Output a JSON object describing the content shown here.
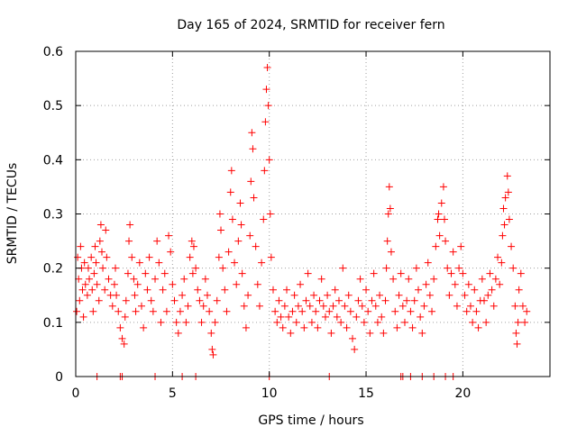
{
  "chart_data": {
    "type": "scatter",
    "title": "Day 165 of 2024, SRMTID for receiver fern",
    "xlabel": "GPS time / hours",
    "ylabel": "SRMTID / TECUs",
    "xlim": [
      0,
      24.5
    ],
    "ylim": [
      0,
      0.6
    ],
    "x_ticks": [
      0,
      5,
      10,
      15,
      20
    ],
    "y_ticks": [
      0,
      0.1,
      0.2,
      0.3,
      0.4,
      0.5,
      0.6
    ],
    "x_tick_labels": [
      "0",
      "5",
      "10",
      "15",
      "20"
    ],
    "y_tick_labels": [
      "0",
      "0.1",
      "0.2",
      "0.3",
      "0.4",
      "0.5",
      "0.6"
    ],
    "grid": true,
    "marker": "+",
    "colors": {
      "series": "#ff0000",
      "grid": "#a0a0a0",
      "axes": "#000000"
    },
    "series": [
      {
        "name": "SRMTID",
        "points": [
          [
            0.05,
            0.12
          ],
          [
            0.1,
            0.22
          ],
          [
            0.15,
            0.18
          ],
          [
            0.2,
            0.14
          ],
          [
            0.25,
            0.24
          ],
          [
            0.3,
            0.2
          ],
          [
            0.35,
            0.16
          ],
          [
            0.4,
            0.11
          ],
          [
            0.45,
            0.21
          ],
          [
            0.5,
            0.17
          ],
          [
            0.6,
            0.15
          ],
          [
            0.65,
            0.2
          ],
          [
            0.7,
            0.18
          ],
          [
            0.8,
            0.22
          ],
          [
            0.85,
            0.16
          ],
          [
            0.9,
            0.12
          ],
          [
            0.95,
            0.19
          ],
          [
            1.0,
            0.24
          ],
          [
            1.05,
            0.21
          ],
          [
            1.1,
            0.17
          ],
          [
            1.2,
            0.14
          ],
          [
            1.25,
            0.25
          ],
          [
            1.3,
            0.28
          ],
          [
            1.35,
            0.23
          ],
          [
            1.4,
            0.2
          ],
          [
            1.5,
            0.16
          ],
          [
            1.55,
            0.27
          ],
          [
            1.6,
            0.22
          ],
          [
            1.7,
            0.18
          ],
          [
            1.8,
            0.15
          ],
          [
            1.9,
            0.13
          ],
          [
            2.0,
            0.17
          ],
          [
            2.05,
            0.2
          ],
          [
            2.1,
            0.15
          ],
          [
            2.2,
            0.12
          ],
          [
            2.3,
            0.09
          ],
          [
            2.4,
            0.07
          ],
          [
            2.5,
            0.06
          ],
          [
            2.55,
            0.11
          ],
          [
            2.6,
            0.14
          ],
          [
            2.7,
            0.19
          ],
          [
            2.75,
            0.25
          ],
          [
            2.8,
            0.28
          ],
          [
            2.9,
            0.22
          ],
          [
            3.0,
            0.18
          ],
          [
            3.05,
            0.15
          ],
          [
            3.1,
            0.12
          ],
          [
            3.2,
            0.17
          ],
          [
            3.3,
            0.21
          ],
          [
            3.4,
            0.13
          ],
          [
            3.5,
            0.09
          ],
          [
            3.6,
            0.19
          ],
          [
            3.7,
            0.16
          ],
          [
            3.8,
            0.22
          ],
          [
            3.9,
            0.14
          ],
          [
            4.0,
            0.12
          ],
          [
            4.1,
            0.18
          ],
          [
            4.2,
            0.25
          ],
          [
            4.3,
            0.21
          ],
          [
            4.4,
            0.1
          ],
          [
            4.5,
            0.16
          ],
          [
            4.6,
            0.19
          ],
          [
            4.7,
            0.12
          ],
          [
            4.8,
            0.26
          ],
          [
            4.9,
            0.23
          ],
          [
            5.0,
            0.17
          ],
          [
            5.1,
            0.14
          ],
          [
            5.2,
            0.1
          ],
          [
            5.3,
            0.08
          ],
          [
            5.4,
            0.12
          ],
          [
            5.5,
            0.15
          ],
          [
            5.6,
            0.18
          ],
          [
            5.7,
            0.1
          ],
          [
            5.8,
            0.13
          ],
          [
            5.9,
            0.22
          ],
          [
            6.0,
            0.25
          ],
          [
            6.05,
            0.19
          ],
          [
            6.1,
            0.24
          ],
          [
            6.2,
            0.2
          ],
          [
            6.3,
            0.16
          ],
          [
            6.4,
            0.14
          ],
          [
            6.5,
            0.1
          ],
          [
            6.6,
            0.13
          ],
          [
            6.7,
            0.18
          ],
          [
            6.8,
            0.15
          ],
          [
            6.9,
            0.12
          ],
          [
            7.0,
            0.08
          ],
          [
            7.05,
            0.05
          ],
          [
            7.1,
            0.04
          ],
          [
            7.2,
            0.1
          ],
          [
            7.3,
            0.14
          ],
          [
            7.4,
            0.22
          ],
          [
            7.45,
            0.3
          ],
          [
            7.5,
            0.27
          ],
          [
            7.6,
            0.2
          ],
          [
            7.7,
            0.16
          ],
          [
            7.8,
            0.12
          ],
          [
            7.9,
            0.23
          ],
          [
            8.0,
            0.34
          ],
          [
            8.05,
            0.38
          ],
          [
            8.1,
            0.29
          ],
          [
            8.2,
            0.21
          ],
          [
            8.3,
            0.17
          ],
          [
            8.4,
            0.25
          ],
          [
            8.5,
            0.32
          ],
          [
            8.55,
            0.28
          ],
          [
            8.6,
            0.19
          ],
          [
            8.7,
            0.13
          ],
          [
            8.8,
            0.09
          ],
          [
            8.9,
            0.15
          ],
          [
            9.0,
            0.26
          ],
          [
            9.05,
            0.36
          ],
          [
            9.1,
            0.45
          ],
          [
            9.15,
            0.42
          ],
          [
            9.2,
            0.33
          ],
          [
            9.3,
            0.24
          ],
          [
            9.4,
            0.17
          ],
          [
            9.5,
            0.13
          ],
          [
            9.6,
            0.21
          ],
          [
            9.7,
            0.29
          ],
          [
            9.75,
            0.38
          ],
          [
            9.8,
            0.47
          ],
          [
            9.85,
            0.53
          ],
          [
            9.9,
            0.57
          ],
          [
            9.95,
            0.5
          ],
          [
            10.0,
            0.4
          ],
          [
            10.05,
            0.3
          ],
          [
            10.1,
            0.22
          ],
          [
            10.2,
            0.16
          ],
          [
            10.3,
            0.12
          ],
          [
            10.4,
            0.1
          ],
          [
            10.5,
            0.14
          ],
          [
            10.6,
            0.11
          ],
          [
            10.7,
            0.09
          ],
          [
            10.8,
            0.13
          ],
          [
            10.9,
            0.16
          ],
          [
            11.0,
            0.11
          ],
          [
            11.1,
            0.08
          ],
          [
            11.2,
            0.12
          ],
          [
            11.3,
            0.15
          ],
          [
            11.4,
            0.1
          ],
          [
            11.5,
            0.13
          ],
          [
            11.6,
            0.17
          ],
          [
            11.7,
            0.12
          ],
          [
            11.8,
            0.09
          ],
          [
            11.9,
            0.14
          ],
          [
            12.0,
            0.19
          ],
          [
            12.1,
            0.13
          ],
          [
            12.2,
            0.1
          ],
          [
            12.3,
            0.15
          ],
          [
            12.4,
            0.12
          ],
          [
            12.5,
            0.09
          ],
          [
            12.6,
            0.14
          ],
          [
            12.7,
            0.18
          ],
          [
            12.8,
            0.13
          ],
          [
            12.9,
            0.11
          ],
          [
            13.0,
            0.15
          ],
          [
            13.1,
            0.12
          ],
          [
            13.2,
            0.08
          ],
          [
            13.3,
            0.13
          ],
          [
            13.4,
            0.16
          ],
          [
            13.5,
            0.11
          ],
          [
            13.6,
            0.14
          ],
          [
            13.7,
            0.1
          ],
          [
            13.8,
            0.2
          ],
          [
            13.9,
            0.13
          ],
          [
            14.0,
            0.09
          ],
          [
            14.1,
            0.15
          ],
          [
            14.2,
            0.12
          ],
          [
            14.3,
            0.07
          ],
          [
            14.4,
            0.05
          ],
          [
            14.5,
            0.11
          ],
          [
            14.6,
            0.14
          ],
          [
            14.7,
            0.18
          ],
          [
            14.8,
            0.13
          ],
          [
            14.9,
            0.1
          ],
          [
            15.0,
            0.16
          ],
          [
            15.1,
            0.12
          ],
          [
            15.2,
            0.08
          ],
          [
            15.3,
            0.14
          ],
          [
            15.4,
            0.19
          ],
          [
            15.5,
            0.13
          ],
          [
            15.6,
            0.1
          ],
          [
            15.7,
            0.15
          ],
          [
            15.8,
            0.11
          ],
          [
            15.9,
            0.08
          ],
          [
            16.0,
            0.14
          ],
          [
            16.05,
            0.2
          ],
          [
            16.1,
            0.25
          ],
          [
            16.15,
            0.3
          ],
          [
            16.2,
            0.35
          ],
          [
            16.25,
            0.31
          ],
          [
            16.3,
            0.23
          ],
          [
            16.4,
            0.18
          ],
          [
            16.5,
            0.12
          ],
          [
            16.6,
            0.09
          ],
          [
            16.7,
            0.15
          ],
          [
            16.8,
            0.19
          ],
          [
            16.9,
            0.13
          ],
          [
            17.0,
            0.1
          ],
          [
            17.1,
            0.14
          ],
          [
            17.2,
            0.18
          ],
          [
            17.3,
            0.12
          ],
          [
            17.4,
            0.09
          ],
          [
            17.5,
            0.14
          ],
          [
            17.6,
            0.2
          ],
          [
            17.7,
            0.16
          ],
          [
            17.8,
            0.11
          ],
          [
            17.9,
            0.08
          ],
          [
            18.0,
            0.13
          ],
          [
            18.1,
            0.17
          ],
          [
            18.2,
            0.21
          ],
          [
            18.3,
            0.15
          ],
          [
            18.4,
            0.12
          ],
          [
            18.5,
            0.18
          ],
          [
            18.6,
            0.24
          ],
          [
            18.7,
            0.29
          ],
          [
            18.75,
            0.3
          ],
          [
            18.8,
            0.26
          ],
          [
            18.9,
            0.32
          ],
          [
            19.0,
            0.35
          ],
          [
            19.05,
            0.29
          ],
          [
            19.1,
            0.25
          ],
          [
            19.2,
            0.2
          ],
          [
            19.3,
            0.15
          ],
          [
            19.4,
            0.19
          ],
          [
            19.5,
            0.23
          ],
          [
            19.6,
            0.17
          ],
          [
            19.7,
            0.13
          ],
          [
            19.8,
            0.2
          ],
          [
            19.9,
            0.24
          ],
          [
            20.0,
            0.19
          ],
          [
            20.1,
            0.15
          ],
          [
            20.2,
            0.12
          ],
          [
            20.3,
            0.17
          ],
          [
            20.4,
            0.13
          ],
          [
            20.5,
            0.1
          ],
          [
            20.6,
            0.16
          ],
          [
            20.7,
            0.12
          ],
          [
            20.8,
            0.09
          ],
          [
            20.9,
            0.14
          ],
          [
            21.0,
            0.18
          ],
          [
            21.1,
            0.14
          ],
          [
            21.2,
            0.1
          ],
          [
            21.3,
            0.15
          ],
          [
            21.4,
            0.19
          ],
          [
            21.5,
            0.16
          ],
          [
            21.6,
            0.13
          ],
          [
            21.7,
            0.18
          ],
          [
            21.8,
            0.22
          ],
          [
            21.9,
            0.17
          ],
          [
            22.0,
            0.21
          ],
          [
            22.05,
            0.26
          ],
          [
            22.1,
            0.31
          ],
          [
            22.15,
            0.28
          ],
          [
            22.2,
            0.33
          ],
          [
            22.3,
            0.37
          ],
          [
            22.35,
            0.34
          ],
          [
            22.4,
            0.29
          ],
          [
            22.5,
            0.24
          ],
          [
            22.6,
            0.2
          ],
          [
            22.7,
            0.13
          ],
          [
            22.75,
            0.08
          ],
          [
            22.8,
            0.06
          ],
          [
            22.85,
            0.1
          ],
          [
            22.9,
            0.16
          ],
          [
            23.0,
            0.19
          ],
          [
            23.1,
            0.13
          ],
          [
            23.2,
            0.1
          ],
          [
            23.3,
            0.12
          ],
          [
            1.1,
            0.0
          ],
          [
            2.3,
            0.0
          ],
          [
            2.4,
            0.0
          ],
          [
            4.1,
            0.0
          ],
          [
            5.5,
            0.0
          ],
          [
            6.2,
            0.0
          ],
          [
            10.0,
            0.0
          ],
          [
            13.1,
            0.0
          ],
          [
            16.8,
            0.0
          ],
          [
            16.9,
            0.0
          ],
          [
            17.3,
            0.0
          ],
          [
            17.9,
            0.0
          ],
          [
            18.5,
            0.0
          ],
          [
            19.1,
            0.0
          ],
          [
            19.5,
            0.0
          ]
        ]
      }
    ]
  }
}
